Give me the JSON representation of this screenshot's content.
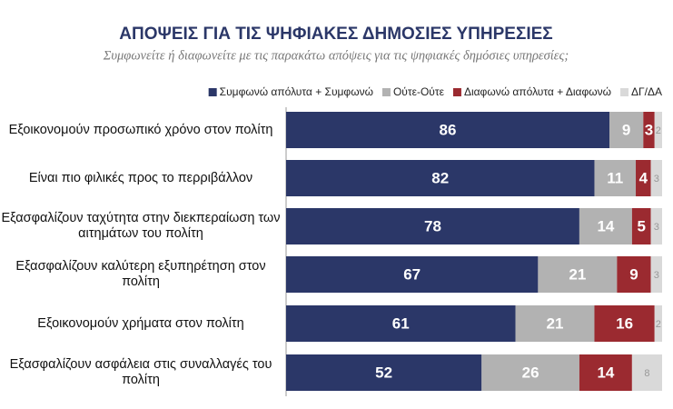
{
  "chart_data": {
    "type": "stacked-bar-horizontal",
    "title": "ΑΠΟΨΕΙΣ ΓΙΑ ΤΙΣ ΨΗΦΙΑΚΕΣ ΔΗΜΟΣΙΕΣ ΥΠΗΡΕΣΙΕΣ",
    "subtitle": "Συμφωνείτε ή διαφωνείτε με τις παρακάτω απόψεις για τις ψηφιακές δημόσιες υπηρεσίες;",
    "categories": [
      "Εξοικονομούν προσωπικό χρόνο στον πολίτη",
      "Είναι πιο φιλικές προς το περριβάλλον",
      "Εξασφαλίζουν ταχύτητα στην διεκπεραίωση των αιτημάτων του πολίτη",
      "Εξασφαλίζουν καλύτερη εξυπηρέτηση στον πολίτη",
      "Εξοικονομούν χρήματα στον πολίτη",
      "Εξασφαλίζουν ασφάλεια στις συναλλαγές του πολίτη"
    ],
    "series": [
      {
        "name": "Συμφωνώ απόλυτα + Συμφωνώ",
        "color": "#2b3768",
        "values": [
          86,
          82,
          78,
          67,
          61,
          52
        ]
      },
      {
        "name": "Ούτε-Ούτε",
        "color": "#b2b2b2",
        "values": [
          9,
          11,
          14,
          21,
          21,
          26
        ]
      },
      {
        "name": "Διαφωνώ απόλυτα + Διαφωνώ",
        "color": "#9b2a30",
        "values": [
          3,
          4,
          5,
          9,
          16,
          14
        ]
      },
      {
        "name": "ΔΓ/ΔΑ",
        "color": "#d9d9d9",
        "values": [
          2,
          3,
          3,
          3,
          2,
          8
        ]
      }
    ],
    "xlim": [
      0,
      100
    ]
  }
}
